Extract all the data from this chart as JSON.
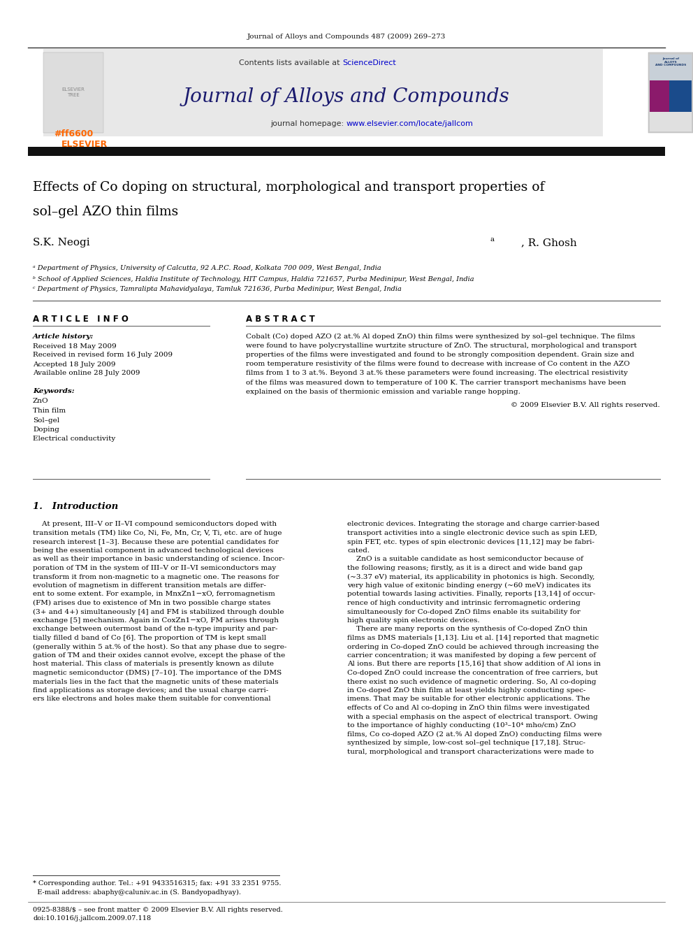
{
  "page_width": 9.92,
  "page_height": 13.23,
  "bg_color": "#ffffff",
  "header_journal_ref": "Journal of Alloys and Compounds 487 (2009) 269–273",
  "header_bg": "#e8e8e8",
  "header_contents": "Contents lists available at ",
  "header_sciencedirect": "ScienceDirect",
  "header_sciencedirect_color": "#0000cc",
  "journal_title": "Journal of Alloys and Compounds",
  "journal_title_color": "#1a1a6e",
  "journal_homepage_prefix": "journal homepage: ",
  "journal_homepage_url": "www.elsevier.com/locate/jallcom",
  "journal_homepage_url_color": "#0000cc",
  "paper_title_line1": "Effects of Co doping on structural, morphological and transport properties of",
  "paper_title_line2": "sol–gel AZO thin films",
  "affil_a": "ᵃ Department of Physics, University of Calcutta, 92 A.P.C. Road, Kolkata 700 009, West Bengal, India",
  "affil_b": "ᵇ School of Applied Sciences, Haldia Institute of Technology, HIT Campus, Haldia 721657, Purba Medinipur, West Bengal, India",
  "affil_c": "ᶜ Department of Physics, Tamralipta Mahavidyalaya, Tamluk 721636, Purba Medinipur, West Bengal, India",
  "article_info_title": "A R T I C L E   I N F O",
  "abstract_title": "A B S T R A C T",
  "article_history_label": "Article history:",
  "received": "Received 18 May 2009",
  "received_revised": "Received in revised form 16 July 2009",
  "accepted": "Accepted 18 July 2009",
  "available_online": "Available online 28 July 2009",
  "keywords_label": "Keywords:",
  "keywords": [
    "ZnO",
    "Thin film",
    "Sol–gel",
    "Doping",
    "Electrical conductivity"
  ],
  "copyright": "© 2009 Elsevier B.V. All rights reserved.",
  "section1_title": "1.   Introduction",
  "footer_text1": "0925-8388/$ – see front matter © 2009 Elsevier B.V. All rights reserved.",
  "footer_text2": "doi:10.1016/j.jallcom.2009.07.118",
  "corresponding_note1": "* Corresponding author. Tel.: +91 9433516315; fax: +91 33 2351 9755.",
  "corresponding_note2": "  E-mail address: abaphy@caluniv.ac.in (S. Bandyopadhyay).",
  "elsevier_color": "#ff6600",
  "dark_bar_color": "#1a1a1a",
  "abstract_lines": [
    "Cobalt (Co) doped AZO (2 at.% Al doped ZnO) thin films were synthesized by sol–gel technique. The films",
    "were found to have polycrystalline wurtzite structure of ZnO. The structural, morphological and transport",
    "properties of the films were investigated and found to be strongly composition dependent. Grain size and",
    "room temperature resistivity of the films were found to decrease with increase of Co content in the AZO",
    "films from 1 to 3 at.%. Beyond 3 at.% these parameters were found increasing. The electrical resistivity",
    "of the films was measured down to temperature of 100 K. The carrier transport mechanisms have been",
    "explained on the basis of thermionic emission and variable range hopping."
  ],
  "intro1_lines": [
    "    At present, III–V or II–VI compound semiconductors doped with",
    "transition metals (TM) like Co, Ni, Fe, Mn, Cr, V, Ti, etc. are of huge",
    "research interest [1–3]. Because these are potential candidates for",
    "being the essential component in advanced technological devices",
    "as well as their importance in basic understanding of science. Incor-",
    "poration of TM in the system of III–V or II–VI semiconductors may",
    "transform it from non-magnetic to a magnetic one. The reasons for",
    "evolution of magnetism in different transition metals are differ-",
    "ent to some extent. For example, in MnxZn1−xO, ferromagnetism",
    "(FM) arises due to existence of Mn in two possible charge states",
    "(3+ and 4+) simultaneously [4] and FM is stabilized through double",
    "exchange [5] mechanism. Again in CoxZn1−xO, FM arises through",
    "exchange between outermost band of the n-type impurity and par-",
    "tially filled d band of Co [6]. The proportion of TM is kept small",
    "(generally within 5 at.% of the host). So that any phase due to segre-",
    "gation of TM and their oxides cannot evolve, except the phase of the",
    "host material. This class of materials is presently known as dilute",
    "magnetic semiconductor (DMS) [7–10]. The importance of the DMS",
    "materials lies in the fact that the magnetic units of these materials",
    "find applications as storage devices; and the usual charge carri-",
    "ers like electrons and holes make them suitable for conventional"
  ],
  "intro2_lines": [
    "electronic devices. Integrating the storage and charge carrier-based",
    "transport activities into a single electronic device such as spin LED,",
    "spin FET, etc. types of spin electronic devices [11,12] may be fabri-",
    "cated.",
    "    ZnO is a suitable candidate as host semiconductor because of",
    "the following reasons; firstly, as it is a direct and wide band gap",
    "(~3.37 eV) material, its applicability in photonics is high. Secondly,",
    "very high value of exitonic binding energy (~60 meV) indicates its",
    "potential towards lasing activities. Finally, reports [13,14] of occur-",
    "rence of high conductivity and intrinsic ferromagnetic ordering",
    "simultaneously for Co-doped ZnO films enable its suitability for",
    "high quality spin electronic devices.",
    "    There are many reports on the synthesis of Co-doped ZnO thin",
    "films as DMS materials [1,13]. Liu et al. [14] reported that magnetic",
    "ordering in Co-doped ZnO could be achieved through increasing the",
    "carrier concentration; it was manifested by doping a few percent of",
    "Al ions. But there are reports [15,16] that show addition of Al ions in",
    "Co-doped ZnO could increase the concentration of free carriers, but",
    "there exist no such evidence of magnetic ordering. So, Al co-doping",
    "in Co-doped ZnO thin film at least yields highly conducting spec-",
    "imens. That may be suitable for other electronic applications. The",
    "effects of Co and Al co-doping in ZnO thin films were investigated",
    "with a special emphasis on the aspect of electrical transport. Owing",
    "to the importance of highly conducting (10³–10⁴ mho/cm) ZnO",
    "films, Co co-doped AZO (2 at.% Al doped ZnO) conducting films were",
    "synthesized by simple, low-cost sol–gel technique [17,18]. Struc-",
    "tural, morphological and transport characterizations were made to"
  ]
}
